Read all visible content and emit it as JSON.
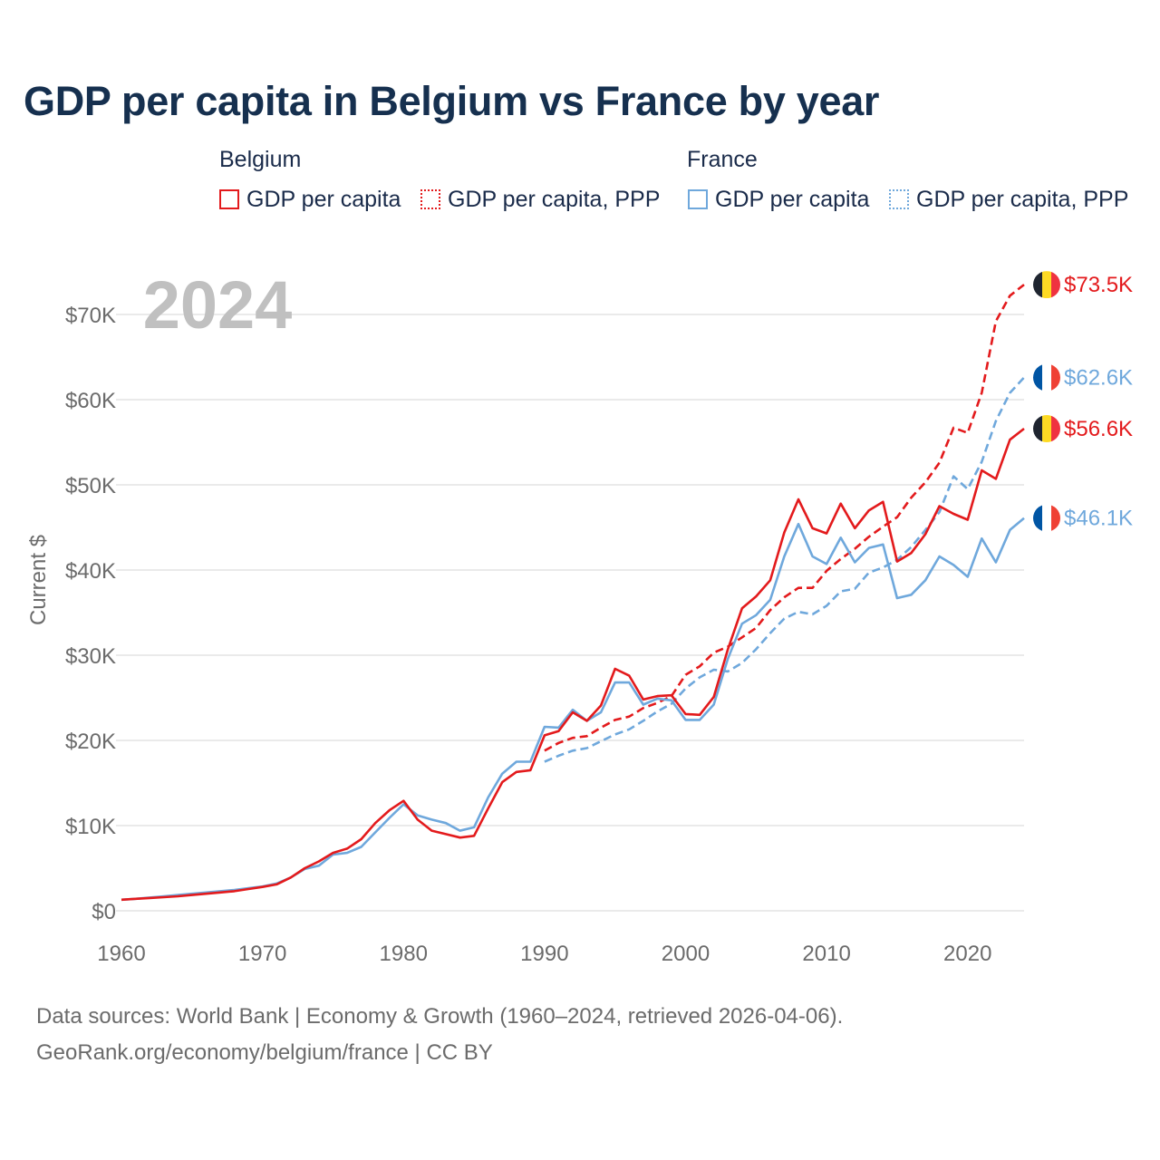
{
  "title": "GDP per capita in Belgium vs France by year",
  "legend": {
    "belgium_title": "Belgium",
    "france_title": "France",
    "items": [
      {
        "label": "GDP per capita",
        "color": "#e31a1c",
        "style": "solid"
      },
      {
        "label": "GDP per capita, PPP",
        "color": "#e31a1c",
        "style": "dotted"
      },
      {
        "label": "GDP per capita",
        "color": "#6fa8dc",
        "style": "solid"
      },
      {
        "label": "GDP per capita, PPP",
        "color": "#6fa8dc",
        "style": "dotted"
      }
    ]
  },
  "year_watermark": "2024",
  "source_line1": "Data sources: World Bank | Economy & Growth (1960–2024, retrieved 2026-04-06).",
  "source_line2": "GeoRank.org/economy/belgium/france | CC BY",
  "chart_data": {
    "type": "line",
    "ylabel": "Current $",
    "xlabel": "",
    "xlim": [
      1960,
      2024
    ],
    "ylim": [
      0,
      75000
    ],
    "x_ticks": [
      "1960",
      "1970",
      "1980",
      "1990",
      "2000",
      "2010",
      "2020"
    ],
    "y_ticks": [
      "$0",
      "$10K",
      "$20K",
      "$30K",
      "$40K",
      "$50K",
      "$60K",
      "$70K"
    ],
    "y_tick_values": [
      0,
      10000,
      20000,
      30000,
      40000,
      50000,
      60000,
      70000
    ],
    "end_labels": [
      "$73.5K",
      "$62.6K",
      "$56.6K",
      "$46.1K"
    ],
    "series": [
      {
        "name": "Belgium GDP per capita",
        "color": "#e31a1c",
        "dash": "solid",
        "x": [
          1960,
          1961,
          1962,
          1963,
          1964,
          1965,
          1966,
          1967,
          1968,
          1969,
          1970,
          1971,
          1972,
          1973,
          1974,
          1975,
          1976,
          1977,
          1978,
          1979,
          1980,
          1981,
          1982,
          1983,
          1984,
          1985,
          1986,
          1987,
          1988,
          1989,
          1990,
          1991,
          1992,
          1993,
          1994,
          1995,
          1996,
          1997,
          1998,
          1999,
          2000,
          2001,
          2002,
          2003,
          2004,
          2005,
          2006,
          2007,
          2008,
          2009,
          2010,
          2011,
          2012,
          2013,
          2014,
          2015,
          2016,
          2017,
          2018,
          2019,
          2020,
          2021,
          2022,
          2023,
          2024
        ],
        "y": [
          1300,
          1400,
          1500,
          1600,
          1700,
          1850,
          2000,
          2150,
          2300,
          2550,
          2800,
          3100,
          3900,
          5000,
          5800,
          6800,
          7300,
          8400,
          10300,
          11800,
          12900,
          10700,
          9400,
          9000,
          8600,
          8800,
          12000,
          15100,
          16300,
          16500,
          20600,
          21100,
          23300,
          22300,
          24100,
          28400,
          27600,
          24800,
          25200,
          25300,
          23100,
          23000,
          25100,
          30700,
          35500,
          36900,
          38800,
          44400,
          48300,
          44900,
          44300,
          47800,
          44900,
          47000,
          48000,
          41000,
          42000,
          44200,
          47500,
          46600,
          45900,
          51700,
          50700,
          55300,
          56600
        ]
      },
      {
        "name": "Belgium GDP per capita, PPP",
        "color": "#e31a1c",
        "dash": "dashed",
        "x": [
          1990,
          1991,
          1992,
          1993,
          1994,
          1995,
          1996,
          1997,
          1998,
          1999,
          2000,
          2001,
          2002,
          2003,
          2004,
          2005,
          2006,
          2007,
          2008,
          2009,
          2010,
          2011,
          2012,
          2013,
          2014,
          2015,
          2016,
          2017,
          2018,
          2019,
          2020,
          2021,
          2022,
          2023,
          2024
        ],
        "y": [
          18800,
          19700,
          20300,
          20500,
          21500,
          22400,
          22800,
          23800,
          24400,
          25200,
          27700,
          28700,
          30300,
          31000,
          32100,
          33200,
          35300,
          36800,
          37900,
          37900,
          39900,
          41300,
          42500,
          43900,
          45100,
          46200,
          48500,
          50300,
          52600,
          56700,
          56100,
          60800,
          69200,
          72200,
          73500
        ]
      },
      {
        "name": "France GDP per capita",
        "color": "#6fa8dc",
        "dash": "solid",
        "x": [
          1960,
          1961,
          1962,
          1963,
          1964,
          1965,
          1966,
          1967,
          1968,
          1969,
          1970,
          1971,
          1972,
          1973,
          1974,
          1975,
          1976,
          1977,
          1978,
          1979,
          1980,
          1981,
          1982,
          1983,
          1984,
          1985,
          1986,
          1987,
          1988,
          1989,
          1990,
          1991,
          1992,
          1993,
          1994,
          1995,
          1996,
          1997,
          1998,
          1999,
          2000,
          2001,
          2002,
          2003,
          2004,
          2005,
          2006,
          2007,
          2008,
          2009,
          2010,
          2011,
          2012,
          2013,
          2014,
          2015,
          2016,
          2017,
          2018,
          2019,
          2020,
          2021,
          2022,
          2023,
          2024
        ],
        "y": [
          1300,
          1400,
          1550,
          1700,
          1850,
          2000,
          2150,
          2300,
          2450,
          2650,
          2850,
          3200,
          3900,
          4900,
          5300,
          6600,
          6800,
          7500,
          9200,
          10900,
          12500,
          11200,
          10700,
          10300,
          9400,
          9800,
          13300,
          16100,
          17500,
          17500,
          21600,
          21500,
          23600,
          22300,
          23300,
          26800,
          26800,
          24200,
          24900,
          24700,
          22400,
          22400,
          24200,
          29600,
          33700,
          34700,
          36500,
          41600,
          45400,
          41600,
          40700,
          43800,
          40900,
          42600,
          43000,
          36700,
          37100,
          38800,
          41600,
          40600,
          39200,
          43700,
          40900,
          44700,
          46100
        ]
      },
      {
        "name": "France GDP per capita, PPP",
        "color": "#6fa8dc",
        "dash": "dashed",
        "x": [
          1990,
          1991,
          1992,
          1993,
          1994,
          1995,
          1996,
          1997,
          1998,
          1999,
          2000,
          2001,
          2002,
          2003,
          2004,
          2005,
          2006,
          2007,
          2008,
          2009,
          2010,
          2011,
          2012,
          2013,
          2014,
          2015,
          2016,
          2017,
          2018,
          2019,
          2020,
          2021,
          2022,
          2023,
          2024
        ],
        "y": [
          17500,
          18200,
          18800,
          19100,
          19900,
          20700,
          21300,
          22300,
          23400,
          24300,
          26100,
          27400,
          28300,
          28100,
          29100,
          30700,
          32600,
          34300,
          35100,
          34800,
          35800,
          37500,
          37800,
          39700,
          40300,
          41200,
          42700,
          44700,
          46800,
          51000,
          49500,
          52700,
          57500,
          60800,
          62600
        ]
      }
    ]
  }
}
